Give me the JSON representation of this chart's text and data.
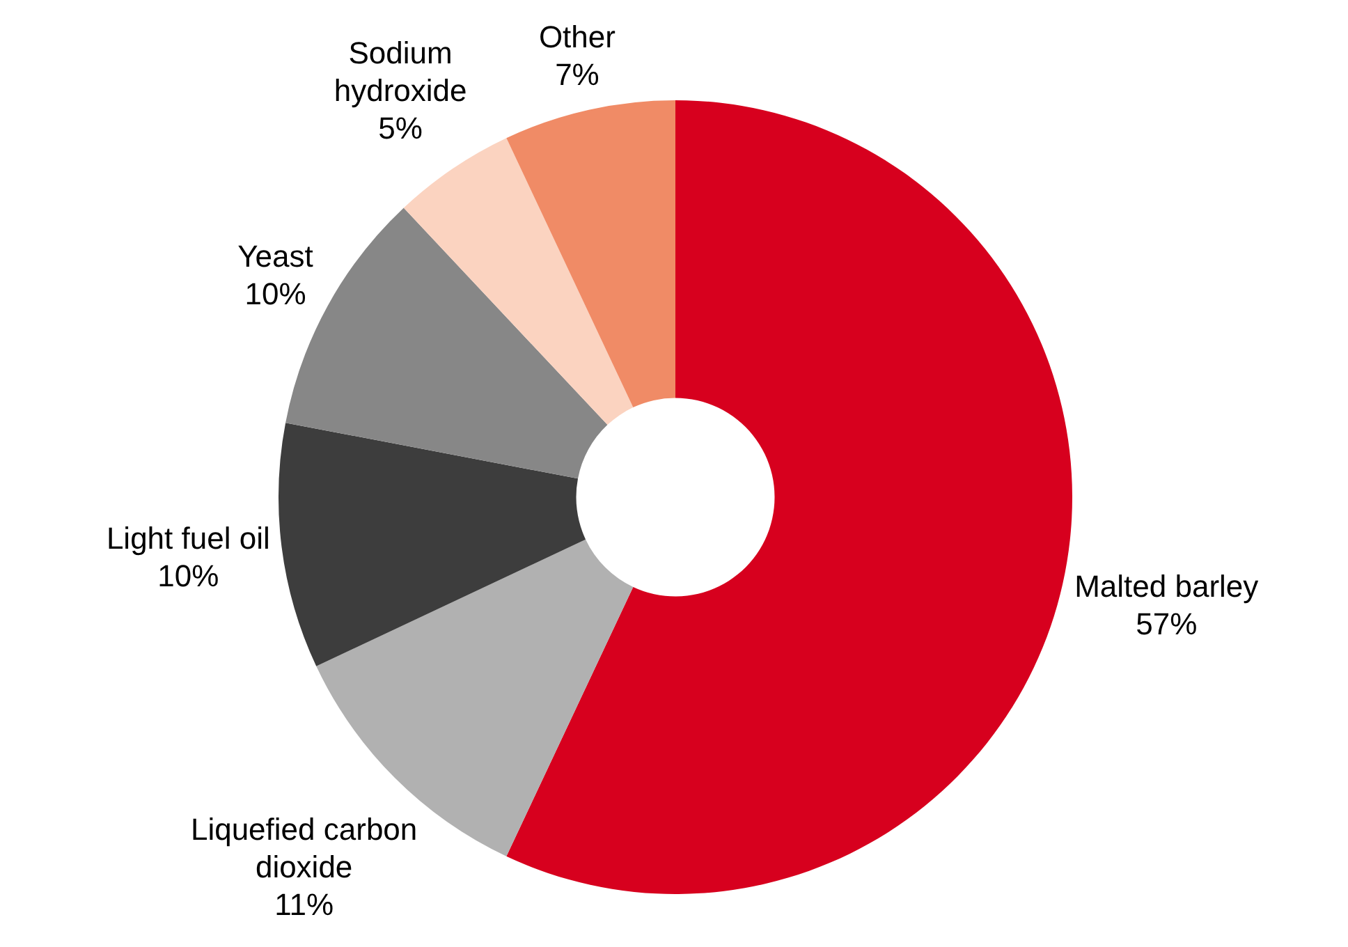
{
  "chart_data": {
    "type": "donut",
    "categories": [
      "Malted barley",
      "Liquefied carbon dioxide",
      "Light fuel oil",
      "Yeast",
      "Sodium hydroxide",
      "Other"
    ],
    "values": [
      57,
      11,
      10,
      10,
      5,
      7
    ],
    "colors": [
      "#d7001e",
      "#b1b1b1",
      "#3d3d3d",
      "#878787",
      "#fbd3c0",
      "#f08b66"
    ],
    "value_labels": [
      "57%",
      "11%",
      "10%",
      "10%",
      "5%",
      "7%"
    ],
    "legend": false
  }
}
